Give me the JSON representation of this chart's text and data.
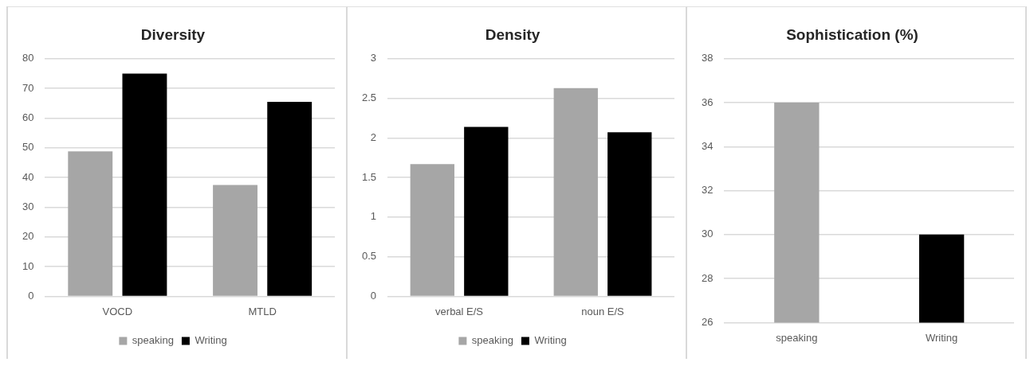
{
  "chart_data": [
    {
      "type": "bar",
      "title": "Diversity",
      "categories": [
        "VOCD",
        "MTLD"
      ],
      "series": [
        {
          "name": "speaking",
          "color": "#a6a6a6",
          "values": [
            48.8,
            37.5
          ]
        },
        {
          "name": "Writing",
          "color": "#000000",
          "values": [
            75,
            65.5
          ]
        }
      ],
      "ylim": [
        0,
        80
      ],
      "yticks": [
        0,
        10,
        20,
        30,
        40,
        50,
        60,
        70,
        80
      ],
      "grid": "y",
      "legend": "bottom"
    },
    {
      "type": "bar",
      "title": "Density",
      "categories": [
        "verbal E/S",
        "noun E/S"
      ],
      "series": [
        {
          "name": "speaking",
          "color": "#a6a6a6",
          "values": [
            1.67,
            2.63
          ]
        },
        {
          "name": "Writing",
          "color": "#000000",
          "values": [
            2.14,
            2.07
          ]
        }
      ],
      "ylim": [
        0,
        3
      ],
      "yticks": [
        0,
        0.5,
        1,
        1.5,
        2,
        2.5,
        3
      ],
      "grid": "y",
      "legend": "bottom"
    },
    {
      "type": "bar",
      "title": "Sophistication (%)",
      "categories": [
        "speaking",
        "Writing"
      ],
      "values": [
        36,
        30
      ],
      "colors": [
        "#a6a6a6",
        "#000000"
      ],
      "ylim": [
        26,
        38
      ],
      "yticks": [
        26,
        28,
        30,
        32,
        34,
        36,
        38
      ],
      "grid": "y"
    }
  ]
}
